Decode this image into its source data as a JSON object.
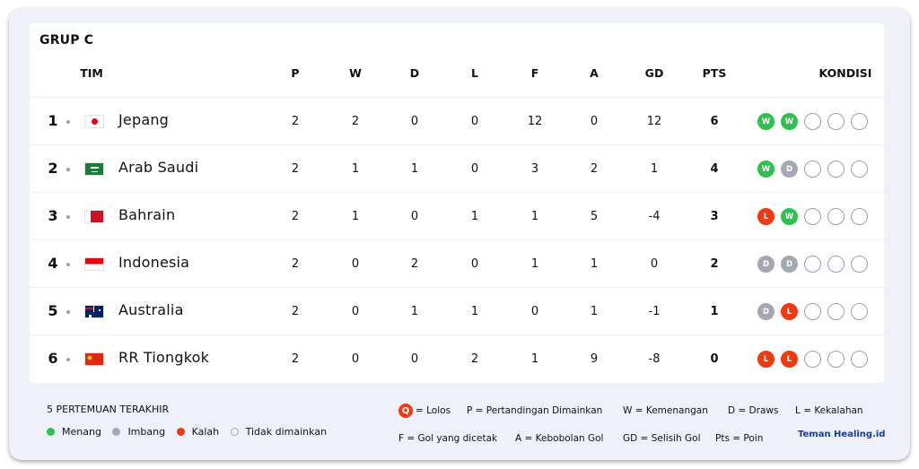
{
  "group_title": "GRUP C",
  "headers": {
    "team": "TIM",
    "p": "P",
    "w": "W",
    "d": "D",
    "l": "L",
    "f": "F",
    "a": "A",
    "gd": "GD",
    "pts": "PTS",
    "form": "KONDISI"
  },
  "rows": [
    {
      "rank": "1",
      "name": "Jepang",
      "flag": "japan-flag",
      "p": "2",
      "w": "2",
      "d": "0",
      "l": "0",
      "f": "12",
      "a": "0",
      "gd": "12",
      "pts": "6",
      "form": [
        "W",
        "W",
        "",
        "",
        ""
      ]
    },
    {
      "rank": "2",
      "name": "Arab Saudi",
      "flag": "saudi-arabia-flag",
      "p": "2",
      "w": "1",
      "d": "1",
      "l": "0",
      "f": "3",
      "a": "2",
      "gd": "1",
      "pts": "4",
      "form": [
        "W",
        "D",
        "",
        "",
        ""
      ]
    },
    {
      "rank": "3",
      "name": "Bahrain",
      "flag": "bahrain-flag",
      "p": "2",
      "w": "1",
      "d": "0",
      "l": "1",
      "f": "1",
      "a": "5",
      "gd": "-4",
      "pts": "3",
      "form": [
        "L",
        "W",
        "",
        "",
        ""
      ]
    },
    {
      "rank": "4",
      "name": "Indonesia",
      "flag": "indonesia-flag",
      "p": "2",
      "w": "0",
      "d": "2",
      "l": "0",
      "f": "1",
      "a": "1",
      "gd": "0",
      "pts": "2",
      "form": [
        "D",
        "D",
        "",
        "",
        ""
      ]
    },
    {
      "rank": "5",
      "name": "Australia",
      "flag": "australia-flag",
      "p": "2",
      "w": "0",
      "d": "1",
      "l": "1",
      "f": "0",
      "a": "1",
      "gd": "-1",
      "pts": "1",
      "form": [
        "D",
        "L",
        "",
        "",
        ""
      ]
    },
    {
      "rank": "6",
      "name": "RR Tiongkok",
      "flag": "china-flag",
      "p": "2",
      "w": "0",
      "d": "0",
      "l": "2",
      "f": "1",
      "a": "9",
      "gd": "-8",
      "pts": "0",
      "form": [
        "L",
        "L",
        "",
        "",
        ""
      ]
    }
  ],
  "legend": {
    "title": "5 PERTEMUAN TERAKHIR",
    "items": [
      {
        "label": "Menang",
        "color": "#2fc14e"
      },
      {
        "label": "Imbang",
        "color": "#a4a8b4"
      },
      {
        "label": "Kalah",
        "color": "#f03a12"
      },
      {
        "label": "Tidak dimainkan",
        "color": "#ffffff"
      }
    ]
  },
  "key": {
    "q_badge": "Q",
    "q": "= Lolos",
    "p": "P = Pertandingan Dimainkan",
    "w": "W = Kemenangan",
    "d": "D = Draws",
    "l": "L = Kekalahan",
    "f": "F = Gol yang dicetak",
    "a": "A = Kebobolan Gol",
    "gd": "GD = Selisih Gol",
    "pts": "Pts = Poin"
  },
  "logo": "Teman Healing.id",
  "colors": {
    "win": "#2fc14e",
    "draw": "#a4a8b4",
    "loss": "#f03a12"
  }
}
